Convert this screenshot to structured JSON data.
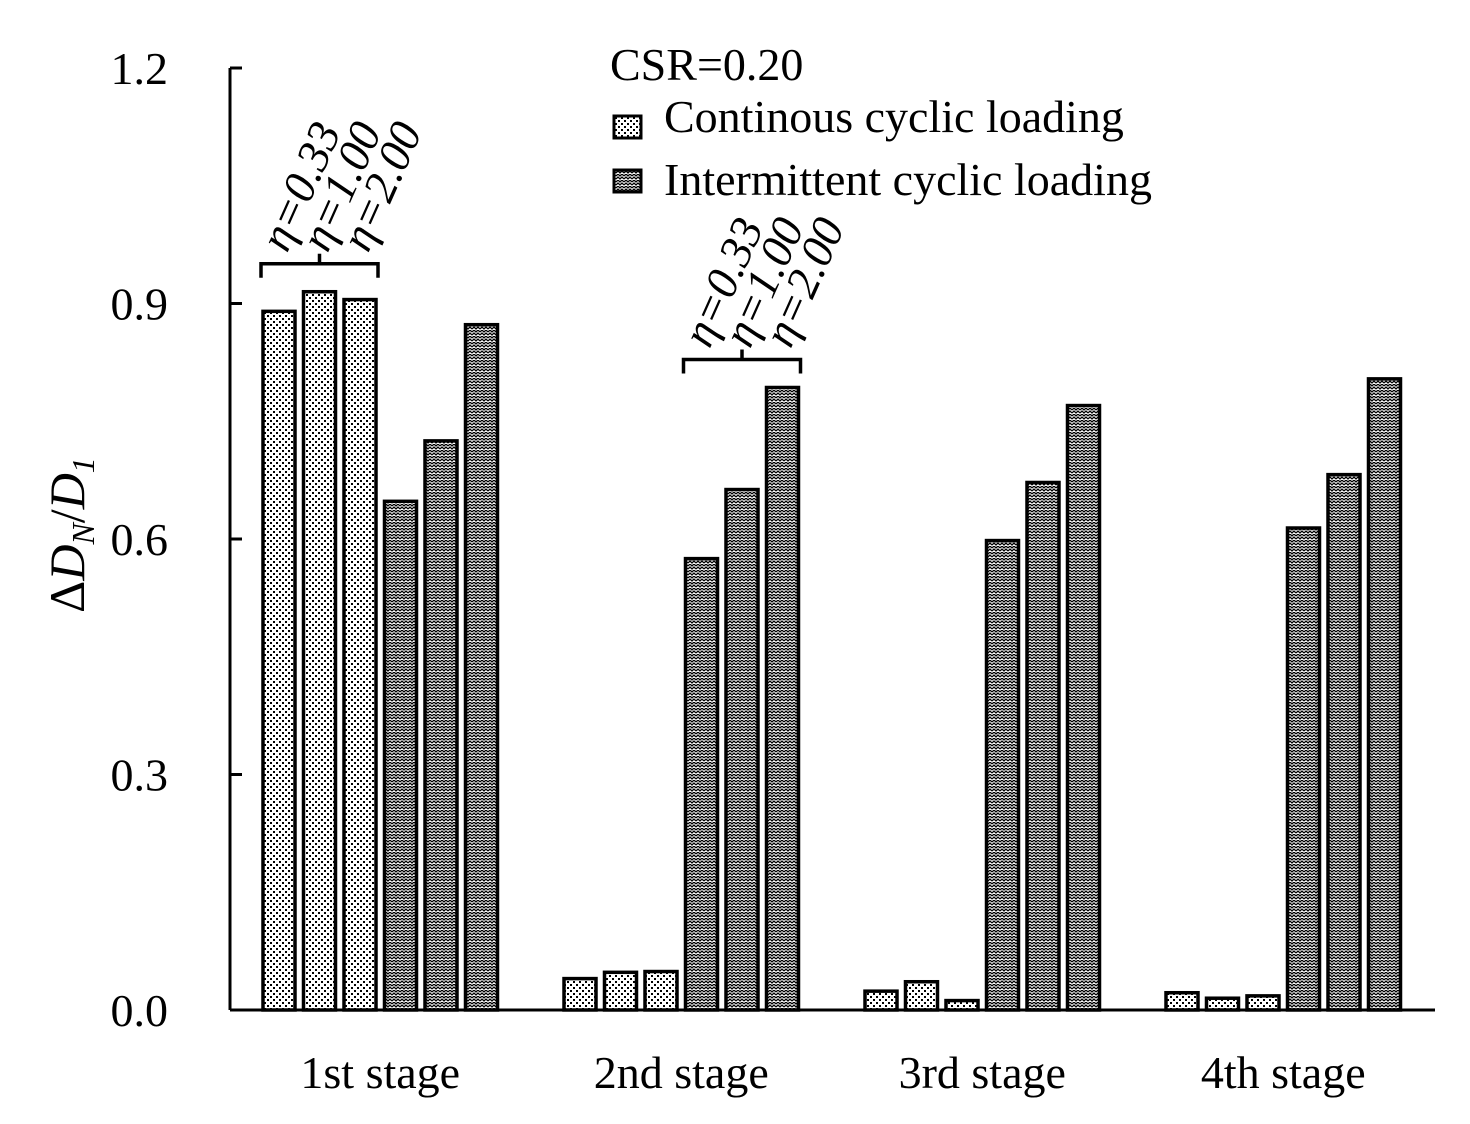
{
  "chart_data": {
    "type": "bar",
    "title": "",
    "annotation": "CSR=0.20",
    "xlabel": "",
    "ylabel": "ΔD_N/D_1",
    "ylabel_parts": {
      "delta": "Δ",
      "num_main": "D",
      "num_sub": "N",
      "slash": "/",
      "den_main": "D",
      "den_sub": "1"
    },
    "ylim": [
      0,
      1.2
    ],
    "yticks": [
      "0.0",
      "0.3",
      "0.6",
      "0.9",
      "1.2"
    ],
    "ytick_values": [
      0,
      0.3,
      0.6,
      0.9,
      1.2
    ],
    "categories": [
      "1st stage",
      "2nd stage",
      "3rd stage",
      "4th stage"
    ],
    "eta_labels": [
      "η=0.33",
      "η=1.00",
      "η=2.00"
    ],
    "series": [
      {
        "name": "Continous cyclic loading",
        "group": "continuous",
        "values": [
          [
            0.89,
            0.915,
            0.905
          ],
          [
            0.04,
            0.048,
            0.049
          ],
          [
            0.024,
            0.036,
            0.012
          ],
          [
            0.022,
            0.015,
            0.018
          ]
        ]
      },
      {
        "name": "Intermittent cyclic loading",
        "group": "intermittent",
        "values": [
          [
            0.648,
            0.725,
            0.873
          ],
          [
            0.575,
            0.663,
            0.793
          ],
          [
            0.598,
            0.672,
            0.77
          ],
          [
            0.614,
            0.682,
            0.804
          ]
        ]
      }
    ],
    "bar_annotations": [
      {
        "category": "1st stage",
        "series": "Continous cyclic loading"
      },
      {
        "category": "2nd stage",
        "series": "Intermittent cyclic loading"
      }
    ],
    "legend": {
      "placement": "top-center",
      "items": [
        {
          "label": "Continous cyclic loading",
          "pattern": "dots"
        },
        {
          "label": "Intermittent cyclic loading",
          "pattern": "zigzag"
        }
      ]
    },
    "colors": {
      "stroke": "#000000",
      "background": "#ffffff",
      "fill": "#ffffff"
    }
  }
}
